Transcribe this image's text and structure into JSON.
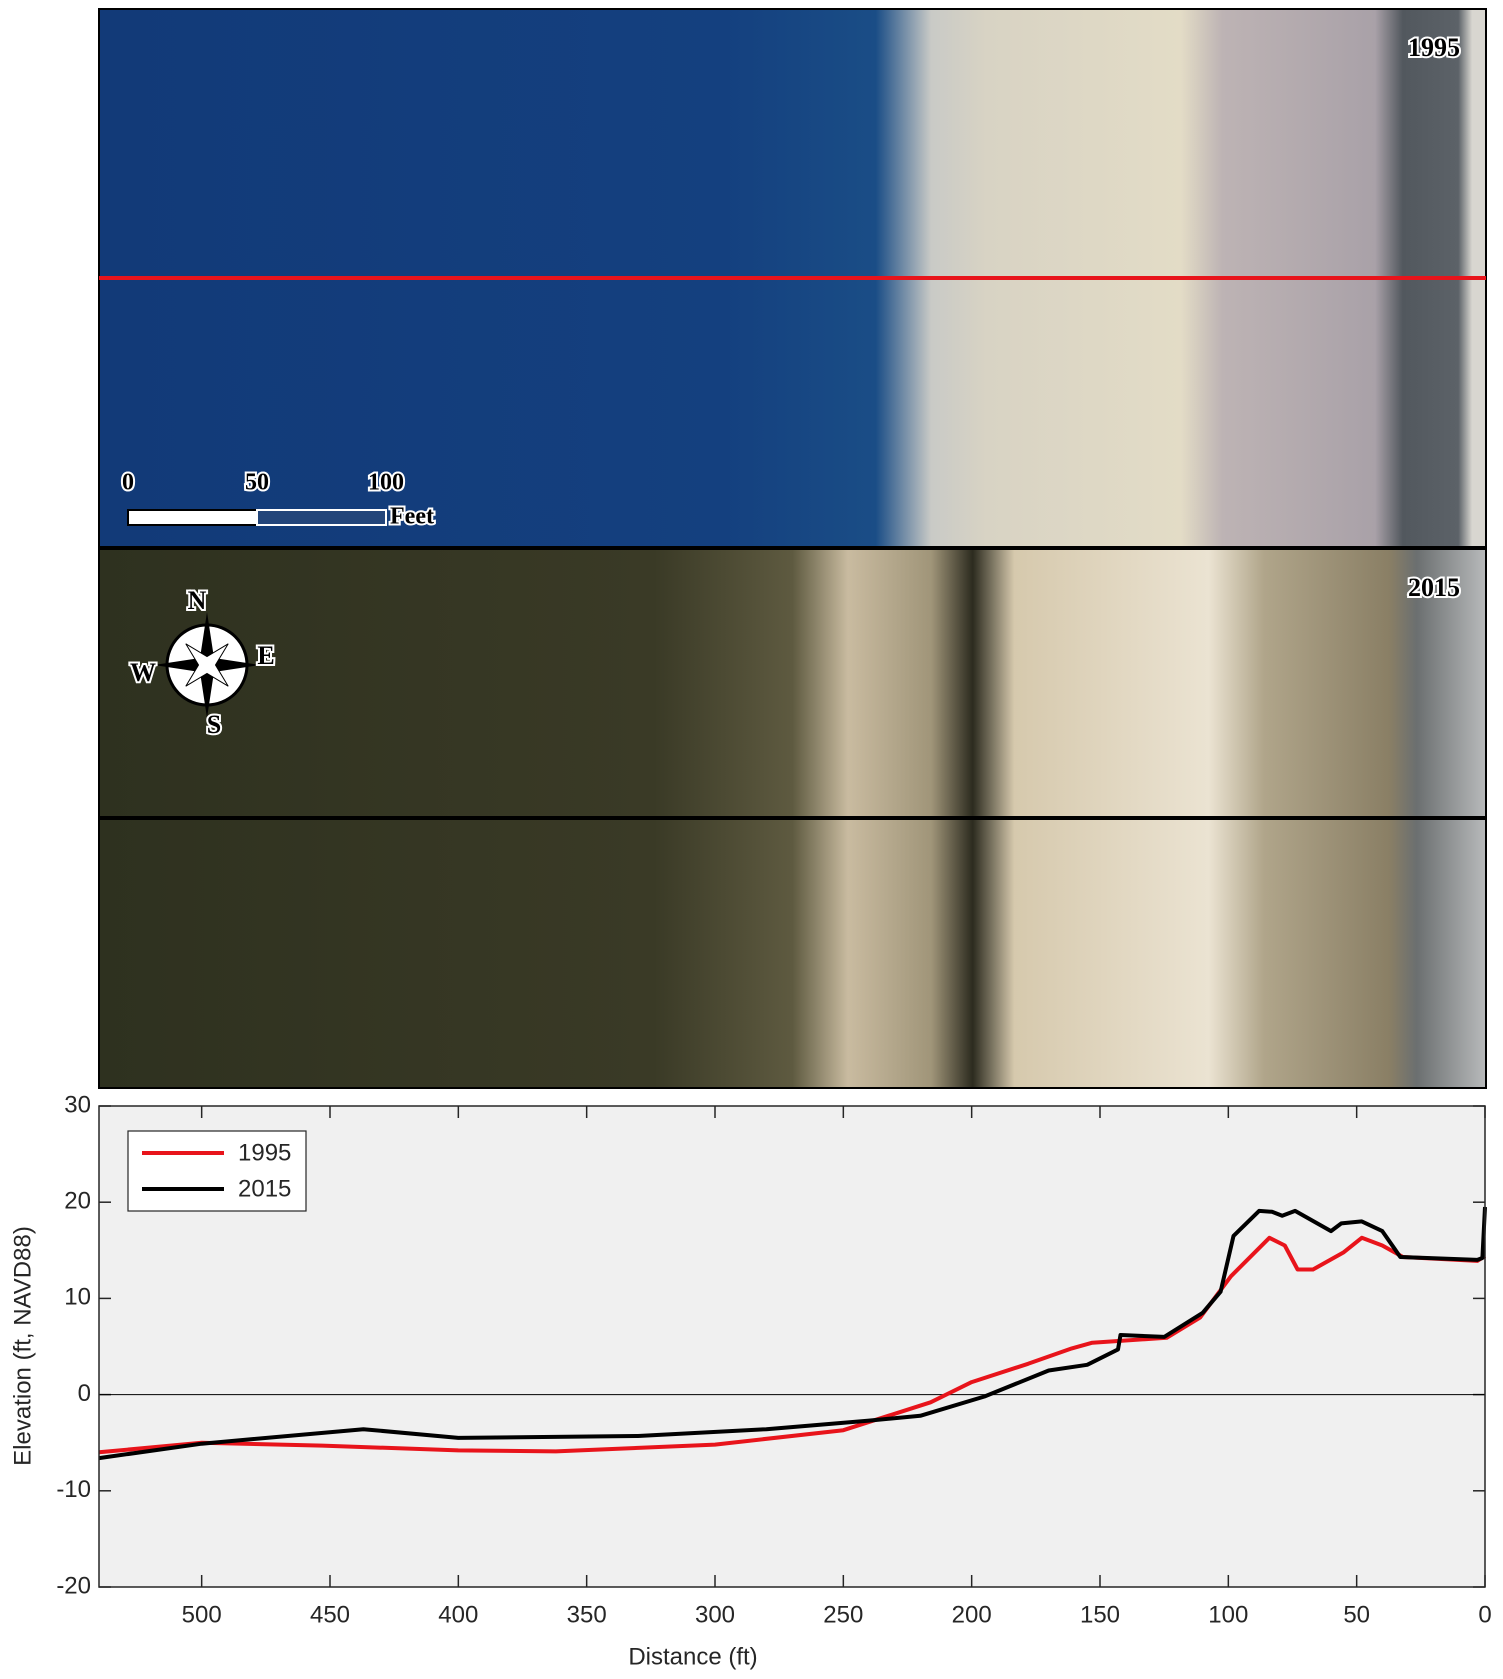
{
  "panels": [
    {
      "label": "1995"
    },
    {
      "label": "2015"
    }
  ],
  "scale_bar": {
    "ticks": [
      0,
      50,
      100
    ],
    "unit": "Feet"
  },
  "compass": {
    "north": "N",
    "east": "E",
    "south": "S",
    "west": "W"
  },
  "chart_data": {
    "type": "line",
    "xlabel": "Distance (ft)",
    "ylabel": "Elevation (ft, NAVD88)",
    "xlim": [
      540,
      0
    ],
    "ylim": [
      -20,
      30
    ],
    "xticks": [
      500,
      450,
      400,
      350,
      300,
      250,
      200,
      150,
      100,
      50,
      0
    ],
    "yticks": [
      -20,
      -10,
      0,
      10,
      20,
      30
    ],
    "zero_line": true,
    "legend": "upper-left",
    "series": [
      {
        "name": "1995",
        "color": "#e8141b",
        "x": [
          540,
          500,
          453,
          400,
          362,
          300,
          250,
          216,
          200,
          178,
          161,
          153,
          124,
          111,
          99,
          84,
          78,
          73,
          67,
          55,
          48,
          40,
          32,
          3,
          0
        ],
        "values": [
          -6.0,
          -5.0,
          -5.3,
          -5.8,
          -5.9,
          -5.2,
          -3.7,
          -0.8,
          1.3,
          3.2,
          4.8,
          5.4,
          5.9,
          8.0,
          12.3,
          16.3,
          15.5,
          13.0,
          13.0,
          14.8,
          16.3,
          15.5,
          14.3,
          13.9,
          14.4
        ]
      },
      {
        "name": "2015",
        "color": "#000000",
        "x": [
          540,
          500,
          437,
          400,
          330,
          280,
          240,
          220,
          195,
          170,
          155,
          143,
          142,
          125,
          110,
          103,
          98,
          88,
          83,
          79,
          74,
          60,
          56,
          48,
          40,
          33,
          3,
          1,
          0
        ],
        "values": [
          -6.6,
          -5.1,
          -3.6,
          -4.5,
          -4.3,
          -3.6,
          -2.7,
          -2.2,
          -0.2,
          2.5,
          3.1,
          4.7,
          6.2,
          6.0,
          8.5,
          10.7,
          16.5,
          19.1,
          19.0,
          18.6,
          19.1,
          17.0,
          17.8,
          18.0,
          17.0,
          14.3,
          14.0,
          14.2,
          19.5
        ]
      }
    ]
  }
}
